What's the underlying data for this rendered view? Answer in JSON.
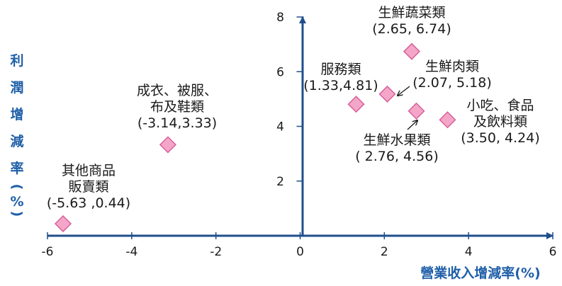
{
  "chart_data": {
    "type": "scatter",
    "title": "",
    "xlabel": "營業收入增減率(%)",
    "ylabel": "利潤增減率(%)",
    "ylabel_chars": [
      "利",
      "潤",
      "增",
      "減",
      "率",
      "(",
      "%",
      ")"
    ],
    "xlim": [
      -6,
      6
    ],
    "ylim": [
      0,
      8
    ],
    "xticks": [
      "-6",
      "-4",
      "-2",
      "0",
      "2",
      "4",
      "6"
    ],
    "yticks": [
      "2",
      "4",
      "6",
      "8"
    ],
    "marker_color": "#f4a6c8",
    "marker_edge": "#d8609a",
    "axis_color": "#1f4e8c",
    "axis_title_color": "#1f5fa8",
    "points": [
      {
        "x": -5.63,
        "y": 0.44,
        "label": [
          "其他商品",
          "販賣類",
          "(-5.63 ,0.44)"
        ]
      },
      {
        "x": -3.14,
        "y": 3.33,
        "label": [
          "成衣、被服、",
          "布及鞋類",
          "(-3.14,3.33)"
        ]
      },
      {
        "x": 1.33,
        "y": 4.81,
        "label": [
          "服務類",
          "(1.33,4.81)"
        ]
      },
      {
        "x": 2.07,
        "y": 5.18,
        "label": [
          "生鮮肉類",
          "(2.07, 5.18)"
        ]
      },
      {
        "x": 2.65,
        "y": 6.74,
        "label": [
          "生鮮蔬菜類",
          "(2.65, 6.74)"
        ]
      },
      {
        "x": 2.76,
        "y": 4.56,
        "label": [
          "生鮮水果類",
          "( 2.76, 4.56)"
        ]
      },
      {
        "x": 3.5,
        "y": 4.24,
        "label": [
          "小吃、食品",
          "及飲料類",
          "(3.50, 4.24)"
        ]
      }
    ]
  }
}
